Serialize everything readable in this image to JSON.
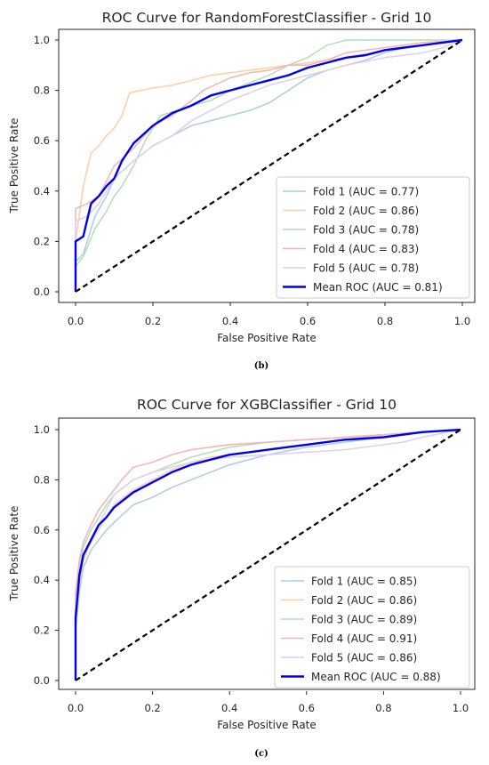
{
  "captions": [
    "(b)",
    "(c)"
  ],
  "chart_data": [
    {
      "type": "line",
      "title": "ROC Curve for RandomForestClassifier - Grid 10",
      "xlabel": "False Positive Rate",
      "ylabel": "True Positive Rate",
      "xlim": [
        0,
        1
      ],
      "ylim": [
        0,
        1
      ],
      "xticks": [
        "0.0",
        "0.2",
        "0.4",
        "0.6",
        "0.8",
        "1.0"
      ],
      "yticks": [
        "0.0",
        "0.2",
        "0.4",
        "0.6",
        "0.8",
        "1.0"
      ],
      "grid": false,
      "legend_position": "lower-right",
      "chance_line": {
        "x": [
          0,
          1
        ],
        "y": [
          0,
          1
        ],
        "color": "#000000",
        "style": "dashed"
      },
      "series": [
        {
          "name": "Fold 1 (AUC = 0.77)",
          "color": "#a9cde6",
          "width": 1.5,
          "x": [
            0,
            0,
            0.02,
            0.05,
            0.08,
            0.1,
            0.15,
            0.2,
            0.25,
            0.3,
            0.35,
            0.4,
            0.45,
            0.5,
            0.55,
            0.6,
            0.65,
            0.7,
            0.75,
            0.8,
            0.85,
            0.9,
            0.95,
            1
          ],
          "y": [
            0,
            0.12,
            0.15,
            0.3,
            0.38,
            0.45,
            0.52,
            0.58,
            0.62,
            0.66,
            0.68,
            0.7,
            0.72,
            0.75,
            0.8,
            0.85,
            0.88,
            0.9,
            0.92,
            0.95,
            0.97,
            0.98,
            0.99,
            1
          ]
        },
        {
          "name": "Fold 2 (AUC = 0.86)",
          "color": "#fdcfa2",
          "width": 1.5,
          "x": [
            0,
            0,
            0.02,
            0.04,
            0.06,
            0.08,
            0.1,
            0.12,
            0.14,
            0.2,
            0.25,
            0.3,
            0.35,
            0.4,
            0.5,
            0.6,
            0.7,
            0.8,
            0.9,
            1
          ],
          "y": [
            0,
            0.2,
            0.42,
            0.55,
            0.58,
            0.62,
            0.65,
            0.7,
            0.79,
            0.81,
            0.82,
            0.84,
            0.86,
            0.87,
            0.89,
            0.91,
            0.93,
            0.96,
            0.98,
            1
          ]
        },
        {
          "name": "Fold 3 (AUC = 0.78)",
          "color": "#b3deb3",
          "width": 1.5,
          "x": [
            0,
            0,
            0.02,
            0.05,
            0.08,
            0.1,
            0.12,
            0.15,
            0.18,
            0.22,
            0.28,
            0.35,
            0.4,
            0.45,
            0.5,
            0.55,
            0.6,
            0.65,
            0.7,
            0.8,
            0.9,
            1
          ],
          "y": [
            0,
            0.1,
            0.14,
            0.25,
            0.32,
            0.38,
            0.42,
            0.5,
            0.6,
            0.7,
            0.73,
            0.76,
            0.8,
            0.83,
            0.86,
            0.9,
            0.93,
            0.98,
            1.0,
            1.0,
            1.0,
            1
          ]
        },
        {
          "name": "Fold 4 (AUC = 0.83)",
          "color": "#f2b3b3",
          "width": 1.5,
          "x": [
            0,
            0,
            0.03,
            0.06,
            0.1,
            0.15,
            0.2,
            0.25,
            0.3,
            0.33,
            0.4,
            0.45,
            0.5,
            0.55,
            0.6,
            0.65,
            0.7,
            0.8,
            0.9,
            1
          ],
          "y": [
            0,
            0.33,
            0.35,
            0.38,
            0.5,
            0.57,
            0.66,
            0.7,
            0.76,
            0.8,
            0.85,
            0.87,
            0.88,
            0.9,
            0.9,
            0.92,
            0.95,
            0.97,
            0.99,
            1
          ]
        },
        {
          "name": "Fold 5 (AUC = 0.78)",
          "color": "#dccff0",
          "width": 1.5,
          "x": [
            0,
            0,
            0.03,
            0.06,
            0.1,
            0.15,
            0.2,
            0.25,
            0.3,
            0.35,
            0.4,
            0.5,
            0.6,
            0.7,
            0.8,
            0.85,
            0.9,
            0.95,
            1
          ],
          "y": [
            0,
            0.28,
            0.3,
            0.35,
            0.45,
            0.52,
            0.58,
            0.62,
            0.68,
            0.72,
            0.76,
            0.82,
            0.86,
            0.9,
            0.93,
            0.94,
            0.95,
            0.97,
            1
          ]
        },
        {
          "name": "Mean ROC (AUC = 0.81)",
          "color": "#0000ee",
          "width": 2.4,
          "x": [
            0,
            0,
            0.02,
            0.04,
            0.06,
            0.08,
            0.1,
            0.12,
            0.15,
            0.2,
            0.25,
            0.3,
            0.35,
            0.4,
            0.45,
            0.5,
            0.55,
            0.6,
            0.65,
            0.7,
            0.75,
            0.8,
            0.85,
            0.9,
            0.95,
            1
          ],
          "y": [
            0,
            0.2,
            0.22,
            0.35,
            0.38,
            0.42,
            0.45,
            0.52,
            0.59,
            0.66,
            0.71,
            0.74,
            0.78,
            0.8,
            0.82,
            0.84,
            0.86,
            0.89,
            0.91,
            0.93,
            0.94,
            0.96,
            0.97,
            0.98,
            0.99,
            1
          ]
        }
      ]
    },
    {
      "type": "line",
      "title": "ROC Curve for XGBClassifier - Grid 10",
      "xlabel": "False Positive Rate",
      "ylabel": "True Positive Rate",
      "xlim": [
        0,
        1
      ],
      "ylim": [
        0,
        1
      ],
      "xticks": [
        "0.0",
        "0.2",
        "0.4",
        "0.6",
        "0.8",
        "1.0"
      ],
      "yticks": [
        "0.0",
        "0.2",
        "0.4",
        "0.6",
        "0.8",
        "1.0"
      ],
      "grid": false,
      "legend_position": "lower-right",
      "chance_line": {
        "x": [
          0,
          1
        ],
        "y": [
          0,
          1
        ],
        "color": "#000000",
        "style": "dashed"
      },
      "series": [
        {
          "name": "Fold 1 (AUC = 0.85)",
          "color": "#a9cde6",
          "width": 1.5,
          "x": [
            0,
            0,
            0.01,
            0.02,
            0.04,
            0.06,
            0.08,
            0.1,
            0.15,
            0.2,
            0.25,
            0.3,
            0.35,
            0.4,
            0.5,
            0.6,
            0.7,
            0.8,
            0.9,
            1
          ],
          "y": [
            0,
            0.2,
            0.35,
            0.45,
            0.52,
            0.56,
            0.6,
            0.63,
            0.7,
            0.73,
            0.77,
            0.8,
            0.83,
            0.86,
            0.9,
            0.93,
            0.95,
            0.97,
            0.99,
            1
          ]
        },
        {
          "name": "Fold 2 (AUC = 0.86)",
          "color": "#fdcfa2",
          "width": 1.5,
          "x": [
            0,
            0,
            0.01,
            0.02,
            0.04,
            0.06,
            0.08,
            0.1,
            0.15,
            0.2,
            0.25,
            0.3,
            0.35,
            0.4,
            0.5,
            0.6,
            0.7,
            0.8,
            0.9,
            1
          ],
          "y": [
            0,
            0.25,
            0.38,
            0.48,
            0.55,
            0.6,
            0.65,
            0.7,
            0.76,
            0.8,
            0.84,
            0.87,
            0.89,
            0.9,
            0.92,
            0.94,
            0.96,
            0.98,
            0.99,
            1
          ]
        },
        {
          "name": "Fold 3 (AUC = 0.89)",
          "color": "#b3deb3",
          "width": 1.5,
          "x": [
            0,
            0,
            0.01,
            0.02,
            0.04,
            0.06,
            0.08,
            0.1,
            0.15,
            0.2,
            0.25,
            0.3,
            0.35,
            0.4,
            0.5,
            0.6,
            0.7,
            0.8,
            0.9,
            1
          ],
          "y": [
            0,
            0.3,
            0.45,
            0.53,
            0.6,
            0.65,
            0.7,
            0.74,
            0.8,
            0.83,
            0.86,
            0.89,
            0.91,
            0.93,
            0.95,
            0.96,
            0.97,
            0.98,
            0.99,
            1
          ]
        },
        {
          "name": "Fold 4 (AUC = 0.91)",
          "color": "#f2b3b3",
          "width": 1.5,
          "x": [
            0,
            0,
            0.01,
            0.02,
            0.04,
            0.06,
            0.08,
            0.1,
            0.12,
            0.15,
            0.2,
            0.25,
            0.3,
            0.35,
            0.4,
            0.5,
            0.6,
            0.7,
            0.8,
            0.9,
            1
          ],
          "y": [
            0,
            0.35,
            0.48,
            0.55,
            0.62,
            0.68,
            0.72,
            0.76,
            0.8,
            0.85,
            0.87,
            0.9,
            0.92,
            0.93,
            0.94,
            0.95,
            0.96,
            0.97,
            0.98,
            0.99,
            1
          ]
        },
        {
          "name": "Fold 5 (AUC = 0.86)",
          "color": "#dccff0",
          "width": 1.5,
          "x": [
            0,
            0,
            0.01,
            0.02,
            0.04,
            0.06,
            0.08,
            0.1,
            0.15,
            0.2,
            0.25,
            0.3,
            0.4,
            0.5,
            0.6,
            0.7,
            0.8,
            0.85,
            0.9,
            1
          ],
          "y": [
            0,
            0.3,
            0.42,
            0.5,
            0.56,
            0.62,
            0.68,
            0.74,
            0.8,
            0.83,
            0.85,
            0.87,
            0.89,
            0.9,
            0.91,
            0.92,
            0.94,
            0.95,
            0.97,
            1
          ]
        },
        {
          "name": "Mean ROC (AUC = 0.88)",
          "color": "#0000ee",
          "width": 2.4,
          "x": [
            0,
            0,
            0.01,
            0.02,
            0.04,
            0.06,
            0.08,
            0.1,
            0.15,
            0.2,
            0.25,
            0.3,
            0.35,
            0.4,
            0.45,
            0.5,
            0.55,
            0.6,
            0.7,
            0.8,
            0.9,
            1
          ],
          "y": [
            0,
            0.25,
            0.42,
            0.5,
            0.56,
            0.62,
            0.65,
            0.69,
            0.75,
            0.79,
            0.83,
            0.86,
            0.88,
            0.9,
            0.91,
            0.92,
            0.93,
            0.94,
            0.96,
            0.97,
            0.99,
            1
          ]
        }
      ]
    }
  ]
}
